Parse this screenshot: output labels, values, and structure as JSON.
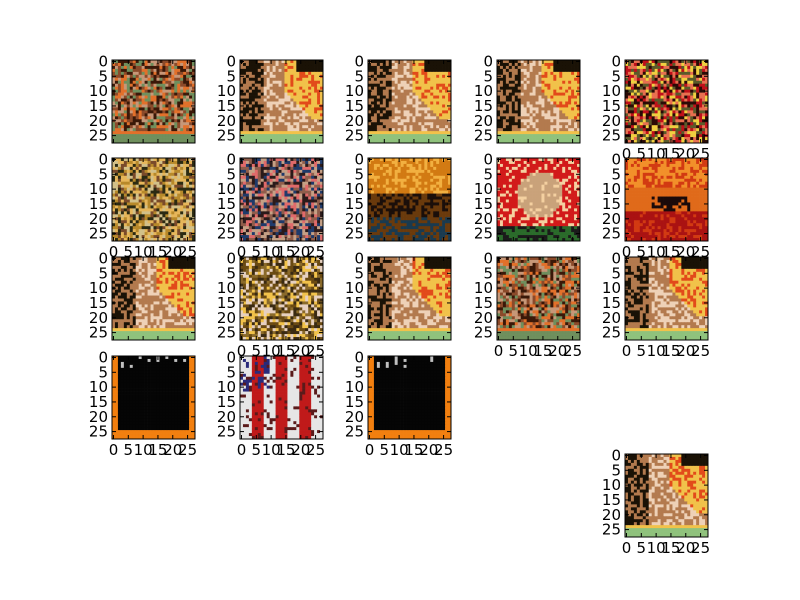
{
  "figure": {
    "background": "#ffffff"
  },
  "chart_data": {
    "type": "image_grid",
    "title": "",
    "grid": false,
    "axis_ticks": {
      "x": [
        0,
        5,
        10,
        15,
        20,
        25
      ],
      "x_labels": [
        "0",
        "5",
        "10",
        "15",
        "20",
        "25"
      ],
      "y": [
        0,
        5,
        10,
        15,
        20,
        25
      ],
      "y_labels": [
        "0",
        "5",
        "10",
        "15",
        "20",
        "25"
      ],
      "xlim": [
        -0.5,
        27.5
      ],
      "ylim": [
        27.5,
        -0.5
      ]
    },
    "panels": [
      {
        "row": 0,
        "col": 0,
        "xticklabels": false,
        "colors": [
          "#3a1808",
          "#8b4a2a",
          "#c79778",
          "#e2702a",
          "#6f8f5d"
        ],
        "content": "brown tones, pink/red at left, green strip at bottom"
      },
      {
        "row": 0,
        "col": 1,
        "xticklabels": false,
        "colors": [
          "#1a1206",
          "#b37a4e",
          "#eed1b7",
          "#f1c24a",
          "#8fc27c"
        ],
        "content": "warm brown with orange/yellow flower area, green strip at bottom"
      },
      {
        "row": 0,
        "col": 2,
        "xticklabels": false,
        "colors": [
          "#1a1206",
          "#b37a4e",
          "#eed1b7",
          "#f1c24a",
          "#8fc27c"
        ],
        "content": "warm brown with orange/yellow flower area, green strip at bottom"
      },
      {
        "row": 0,
        "col": 3,
        "xticklabels": false,
        "colors": [
          "#1a1206",
          "#b37a4e",
          "#eed1b7",
          "#f1c24a",
          "#8fc27c"
        ],
        "content": "warm brown with orange/yellow flower area, green strip at bottom"
      },
      {
        "row": 0,
        "col": 4,
        "xticklabels": true,
        "colors": [
          "#c0101a",
          "#f0d040",
          "#2a0a06",
          "#e87050",
          "#5a5a2a"
        ],
        "content": "red and yellow busy scene"
      },
      {
        "row": 1,
        "col": 0,
        "xticklabels": true,
        "colors": [
          "#2b2a12",
          "#b7892a",
          "#e6b65a",
          "#7a4a2a",
          "#d2c089"
        ],
        "content": "costumed figure with feathers"
      },
      {
        "row": 1,
        "col": 1,
        "xticklabels": true,
        "colors": [
          "#c5a085",
          "#2b1a1a",
          "#e06a6a",
          "#1f3a6a",
          "#8f5d4b"
        ],
        "content": "person in dark swimsuit with red object"
      },
      {
        "row": 1,
        "col": 2,
        "xticklabels": false,
        "colors": [
          "#d27a12",
          "#1b0f0a",
          "#f2b040",
          "#6a3a0c",
          "#1a3a4f"
        ],
        "content": "orange sunset landscape"
      },
      {
        "row": 1,
        "col": 3,
        "xticklabels": false,
        "colors": [
          "#d21a1a",
          "#2a6a2a",
          "#c9a27a",
          "#1a1a1a",
          "#f4d0a0"
        ],
        "content": "smiling face with red background"
      },
      {
        "row": 1,
        "col": 4,
        "xticklabels": true,
        "colors": [
          "#d23a12",
          "#1a0a0a",
          "#e06a1a",
          "#f2902a",
          "#aa1212"
        ],
        "content": "red/orange sky with ship silhouette"
      },
      {
        "row": 2,
        "col": 0,
        "xticklabels": false,
        "colors": [
          "#1a1206",
          "#b37a4e",
          "#eed1b7",
          "#f1c24a",
          "#8fc27c"
        ],
        "content": "warm brown with orange/yellow flower area, green strip at bottom"
      },
      {
        "row": 2,
        "col": 1,
        "xticklabels": true,
        "colors": [
          "#6a4a12",
          "#f1c24a",
          "#e6d0c0",
          "#3a2a12",
          "#8a6a2a"
        ],
        "content": "figure with yellow/white clothing"
      },
      {
        "row": 2,
        "col": 2,
        "xticklabels": false,
        "colors": [
          "#1a1206",
          "#b37a4e",
          "#eed1b7",
          "#f1c24a",
          "#8fc27c"
        ],
        "content": "warm brown with orange/yellow flower area, green strip at bottom"
      },
      {
        "row": 2,
        "col": 3,
        "xticklabels": true,
        "colors": [
          "#3a1808",
          "#8b4a2a",
          "#c79778",
          "#e2702a",
          "#6f8f5d"
        ],
        "content": "brown tones, green strip at bottom"
      },
      {
        "row": 2,
        "col": 4,
        "xticklabels": true,
        "colors": [
          "#1a1206",
          "#b37a4e",
          "#eed1b7",
          "#f1c24a",
          "#8fc27c"
        ],
        "content": "warm brown with orange/yellow flower area, green strip at bottom"
      },
      {
        "row": 3,
        "col": 0,
        "xticklabels": true,
        "colors": [
          "#050505",
          "#f27f0f",
          "#c0c0c0"
        ],
        "content": "black square with orange border"
      },
      {
        "row": 3,
        "col": 1,
        "xticklabels": true,
        "colors": [
          "#2a2a7a",
          "#c01a1a",
          "#e6e6e6",
          "#5a1a1a",
          "#d0a080"
        ],
        "content": "red/white/blue striped pattern"
      },
      {
        "row": 3,
        "col": 2,
        "xticklabels": true,
        "colors": [
          "#050505",
          "#f27f0f",
          "#c0c0c0"
        ],
        "content": "black square with orange border"
      },
      {
        "row": 4,
        "col": 4,
        "xticklabels": true,
        "colors": [
          "#1a1206",
          "#b37a4e",
          "#eed1b7",
          "#f1c24a",
          "#8fc27c"
        ],
        "content": "warm brown with orange/yellow flower area, green strip at bottom"
      }
    ]
  }
}
